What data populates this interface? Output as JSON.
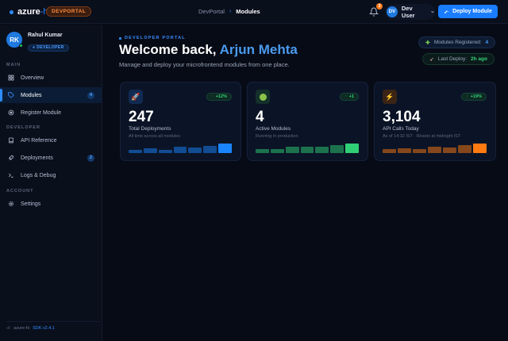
{
  "topbar": {
    "brand": {
      "name": "azure",
      "suffix": "-hi",
      "badge": "DEVPORTAL"
    },
    "breadcrumb": [
      "DevPortal",
      "Modules"
    ],
    "notifications": {
      "count": "3",
      "icon": "bell-icon"
    },
    "user": {
      "initials": "DV",
      "name": "Dev User"
    },
    "deploy_button": "Deploy Module"
  },
  "sidebar": {
    "profile": {
      "initials": "RK",
      "name": "Rahul Kumar",
      "role": "● DEVELOPER",
      "status": "online"
    },
    "sections": [
      {
        "label": "MAIN",
        "items": [
          {
            "label": "Overview",
            "icon": "grid-icon"
          },
          {
            "label": "Modules",
            "icon": "tag-icon",
            "count": "4",
            "active": true
          },
          {
            "label": "Register Module",
            "icon": "plus-circle-icon"
          }
        ]
      },
      {
        "label": "DEVELOPER",
        "items": [
          {
            "label": "API Reference",
            "icon": "book-icon"
          },
          {
            "label": "Deployments",
            "icon": "rocket-icon",
            "count": "2"
          },
          {
            "label": "Logs & Debug",
            "icon": "terminal-icon"
          }
        ]
      },
      {
        "label": "ACCOUNT",
        "items": [
          {
            "label": "Settings",
            "icon": "gear-icon"
          }
        ]
      }
    ],
    "footer": {
      "icon": "‹/›",
      "name": "azure-hi",
      "version": "SDK v2.4.1"
    }
  },
  "main": {
    "eyebrow": "DEVELOPER PORTAL",
    "greeting": "Welcome back, ",
    "user_name": "Arjun Mehta",
    "subtitle": "Manage and deploy your microfrontend modules from one place.",
    "pills": {
      "modules_label": "Modules Registered:",
      "modules_value": "4",
      "deploy_label": "Last Deploy:",
      "deploy_value": "2h ago"
    },
    "cards": [
      {
        "value": "247",
        "label": "Total Deployments",
        "sub": "All time across all modules",
        "trend": "+12%",
        "icon": "🚀",
        "accent": "#1a84ff",
        "bars": [
          30,
          45,
          30,
          60,
          52,
          70,
          95
        ]
      },
      {
        "value": "4",
        "label": "Active Modules",
        "sub": "Running in production",
        "trend": "+1",
        "icon": "🟢",
        "accent": "#2fcf75",
        "bars": [
          40,
          40,
          60,
          60,
          60,
          80,
          95
        ]
      },
      {
        "value": "3,104",
        "label": "API Calls Today",
        "sub": "As of 14:32 IST · Resets at midnight IST",
        "trend": "+19%",
        "icon": "⚡",
        "accent": "#ff7a10",
        "bars": [
          35,
          50,
          40,
          60,
          55,
          75,
          95
        ]
      }
    ]
  }
}
